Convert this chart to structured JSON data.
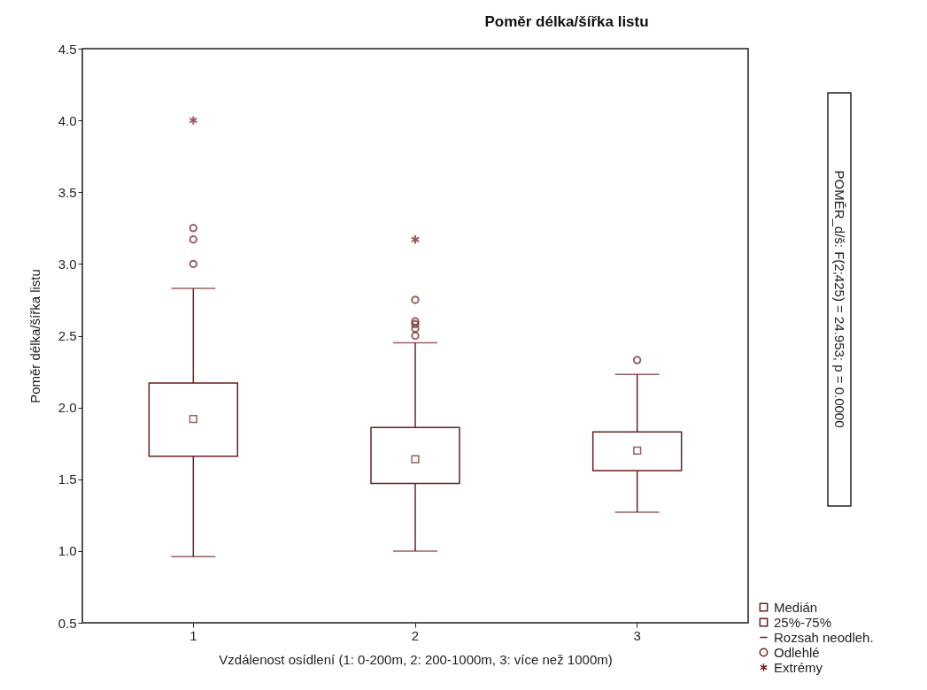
{
  "chart_data": {
    "type": "box",
    "title": "Poměr délka/šířka listu",
    "xlabel": "Vzdálenost osídlení (1: 0-200m, 2: 200-1000m, 3: více než 1000m)",
    "ylabel": "Poměr délka/šířka listu",
    "categories": [
      "1",
      "2",
      "3"
    ],
    "series": [
      {
        "name": "25%-75%",
        "color": "#6b1f1f",
        "boxes": [
          {
            "low": 0.96,
            "q1": 1.66,
            "median": 1.92,
            "q3": 2.17,
            "high": 2.83,
            "outliers": [
              3.0,
              3.17,
              3.25
            ]
          },
          {
            "low": 1.0,
            "q1": 1.47,
            "median": 1.64,
            "q3": 1.86,
            "high": 2.45,
            "outliers": [
              2.5,
              2.55,
              2.58,
              2.6,
              2.75
            ]
          },
          {
            "low": 1.27,
            "q1": 1.56,
            "median": 1.7,
            "q3": 1.83,
            "high": 2.23,
            "outliers": [
              2.33
            ]
          }
        ]
      },
      {
        "type": "scatter",
        "name": "Extrémy",
        "color": "#7a1010",
        "marker": "cross",
        "x": [
          "1",
          "2"
        ],
        "values": [
          4.0,
          3.17
        ]
      }
    ],
    "annotations": [
      "POMĚR_d/š:  F(2;425) = 24.953; p = 0.0000",
      "Medián",
      "Rozsah neodleh.",
      "Odlehlé"
    ],
    "ylim": [
      0.5,
      4.5
    ],
    "yticks": [
      0.5,
      {
        "value": 1,
        "label": "1.0"
      },
      1.5,
      {
        "value": 2,
        "label": "2.0"
      },
      2.5,
      {
        "value": 3,
        "label": "3.0"
      },
      3.5,
      {
        "value": 4,
        "label": "4.0"
      },
      4.5
    ],
    "grid": false,
    "legend": "bottom right"
  }
}
